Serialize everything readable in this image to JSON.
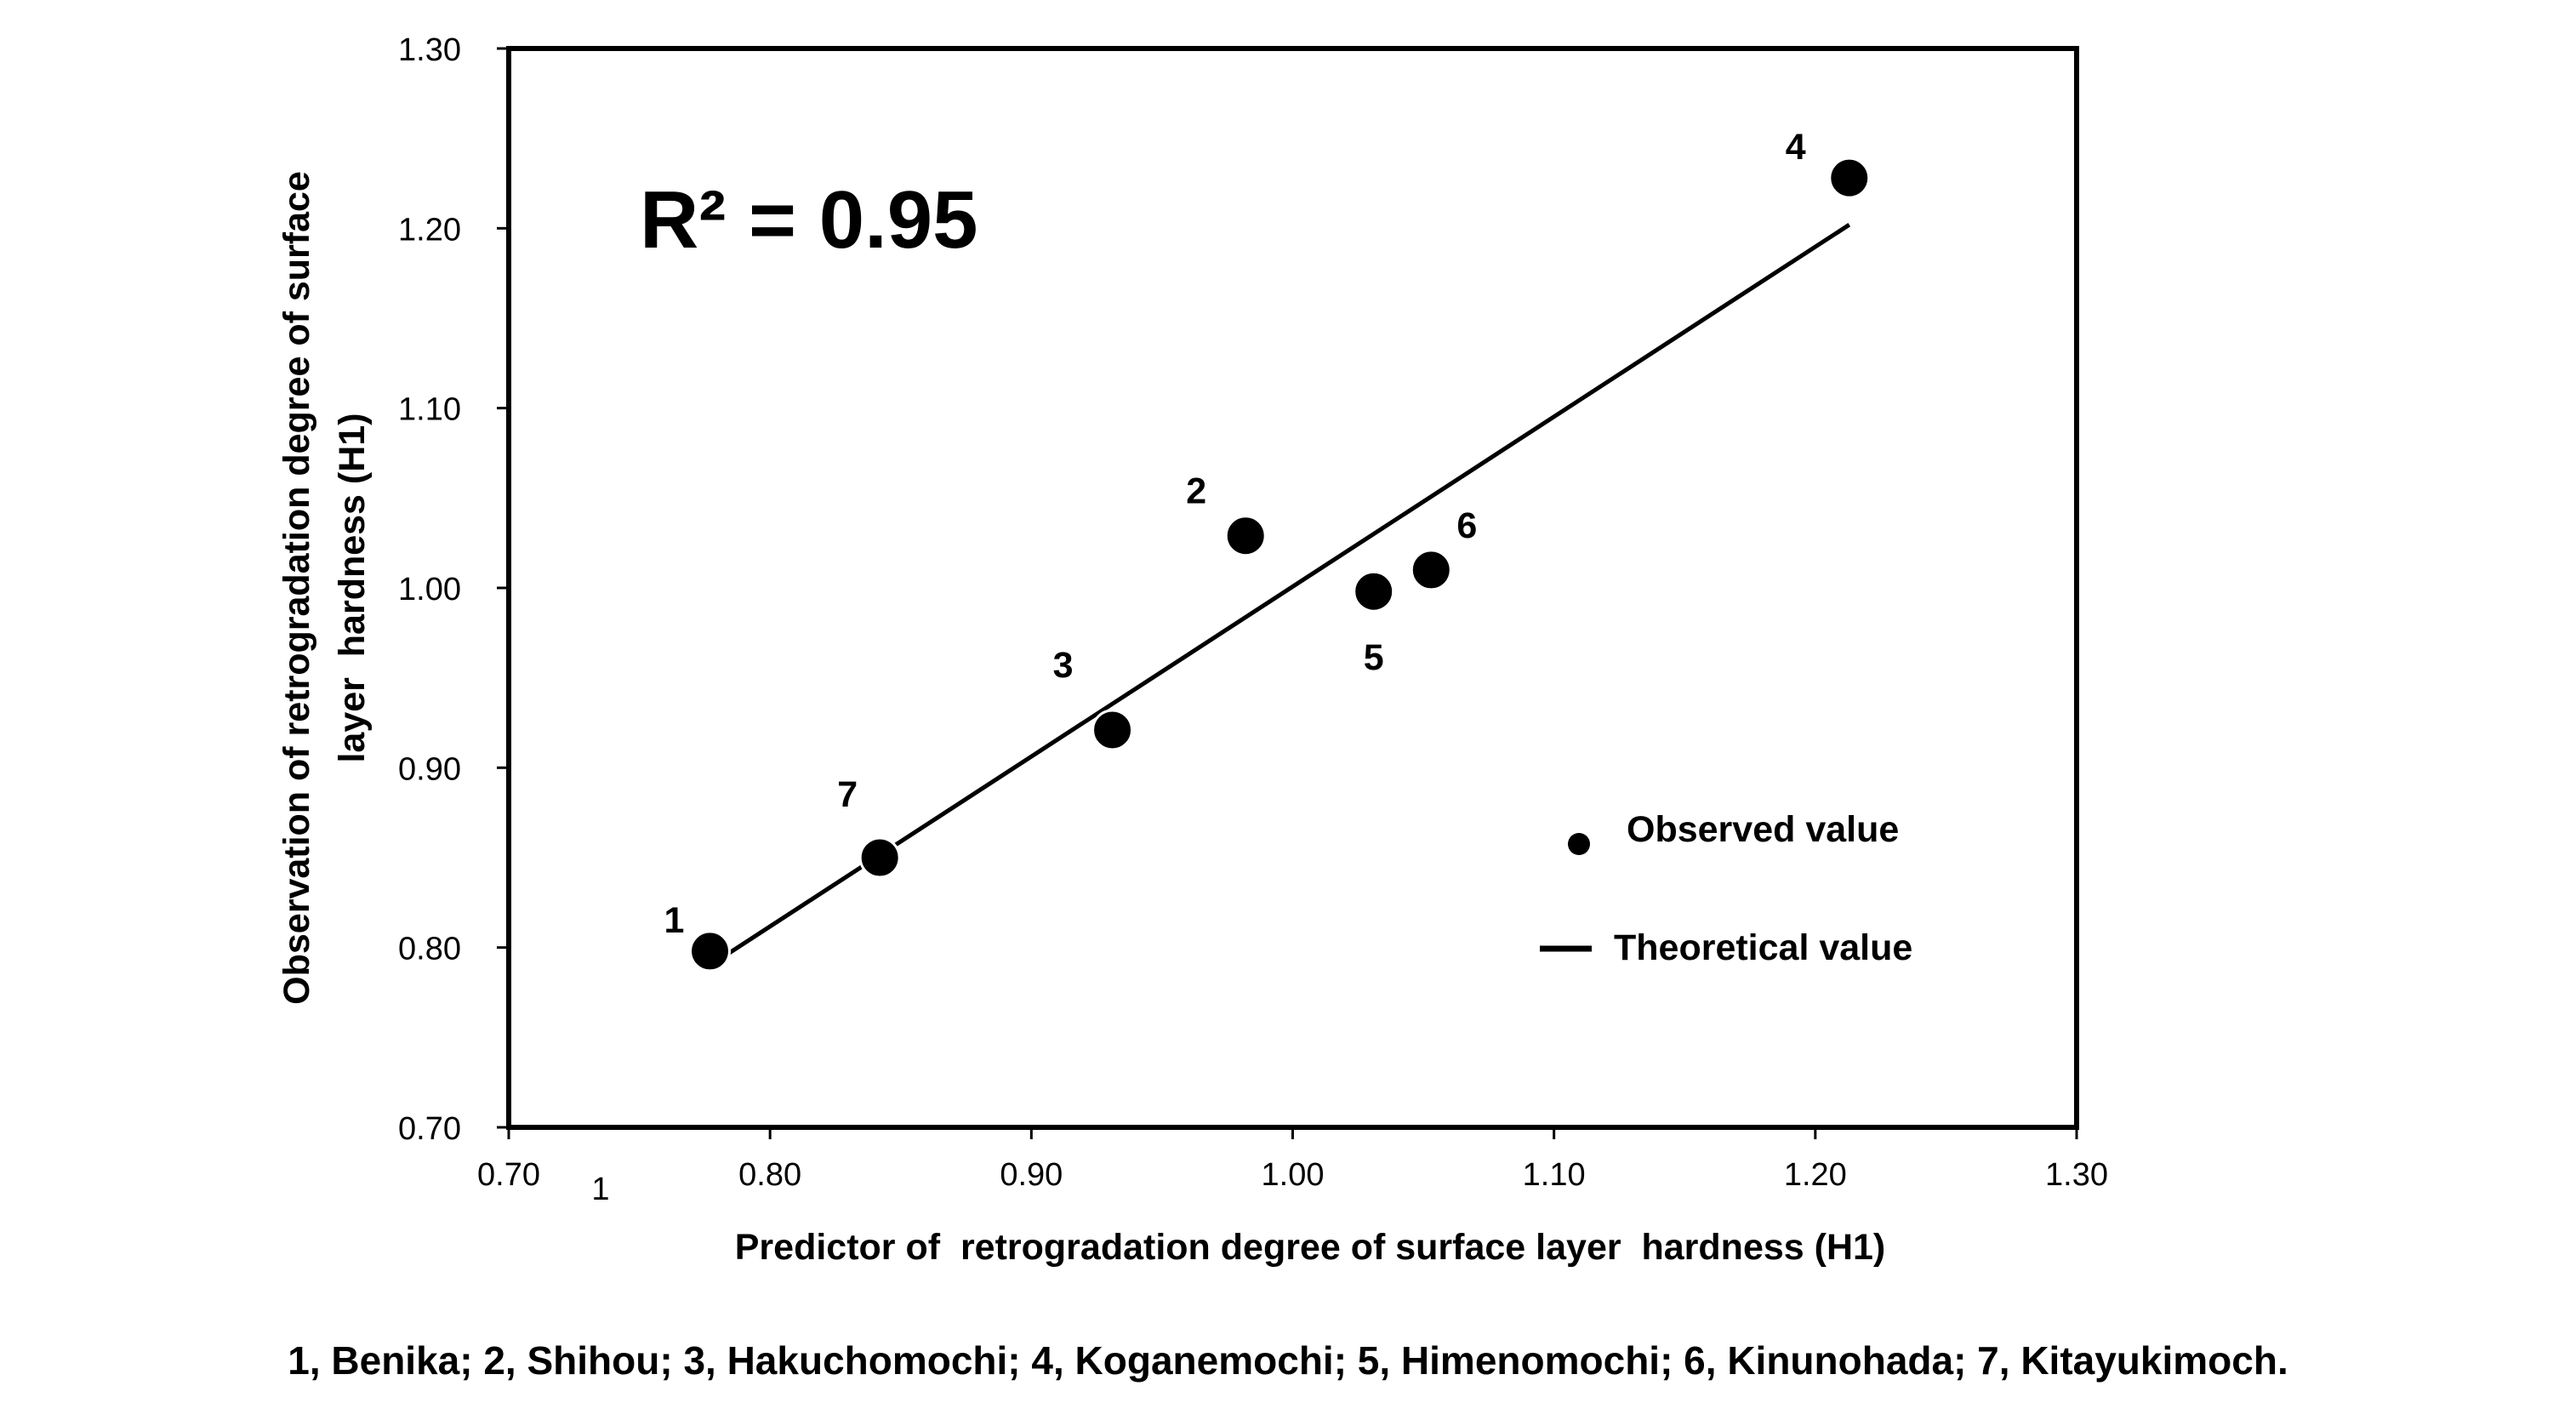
{
  "chart_data": {
    "type": "scatter",
    "title": "",
    "xlabel": "Predictor of  retrogradation degree of surface layer  hardness (H1)",
    "ylabel_line1": "Observation of retrogradation degree of surface",
    "ylabel_line2": "layer  hardness (H1)",
    "xlim": [
      0.7,
      1.3
    ],
    "ylim": [
      0.7,
      1.3
    ],
    "x_ticks": [
      "0.70",
      "0.80",
      "0.90",
      "1.00",
      "1.10",
      "1.20",
      "1.30"
    ],
    "y_ticks": [
      "0.70",
      "0.80",
      "0.90",
      "1.00",
      "1.10",
      "1.20",
      "1.30"
    ],
    "series": [
      {
        "name": "Observed value",
        "kind": "scatter",
        "points": [
          {
            "label": "1",
            "x": 0.777,
            "y": 0.798
          },
          {
            "label": "2",
            "x": 0.982,
            "y": 1.029
          },
          {
            "label": "3",
            "x": 0.931,
            "y": 0.921
          },
          {
            "label": "4",
            "x": 1.213,
            "y": 1.228
          },
          {
            "label": "5",
            "x": 1.031,
            "y": 0.998
          },
          {
            "label": "6",
            "x": 1.053,
            "y": 1.01
          },
          {
            "label": "7",
            "x": 0.842,
            "y": 0.85
          }
        ]
      },
      {
        "name": "Theoretical value",
        "kind": "line",
        "x": [
          0.777,
          1.213
        ],
        "y": [
          0.79,
          1.202
        ]
      }
    ],
    "annotation": "R² = 0.95",
    "legend": {
      "placement": "bottom-right",
      "items": [
        "Observed value",
        "Theoretical value"
      ]
    },
    "stray_text": "1",
    "caption": "1, Benika; 2, Shihou; 3, Hakuchomochi; 4, Koganemochi; 5, Himenomochi; 6, Kinunohada; 7, Kitayukimoch.",
    "grid": false
  }
}
